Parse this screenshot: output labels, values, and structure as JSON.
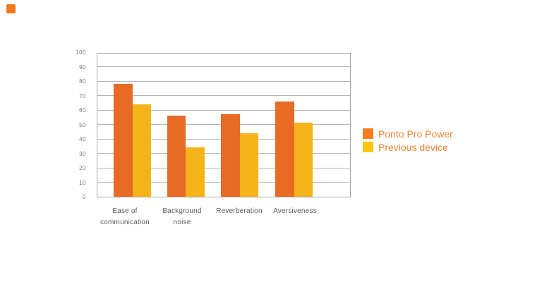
{
  "page": {
    "background": "#ffffff",
    "corner_mark_color": "#f4791f"
  },
  "chart_data": {
    "type": "bar",
    "title": "",
    "xlabel": "",
    "ylabel": "",
    "categories": [
      "Ease of communication",
      "Background noise",
      "Reverberation",
      "Aversiveness"
    ],
    "category_lines": [
      [
        "Ease of",
        "communication"
      ],
      [
        "Background",
        "noise"
      ],
      [
        "Reverberation"
      ],
      [
        "Aversiveness"
      ]
    ],
    "series": [
      {
        "name": "Ponto Pro Power",
        "values": [
          78,
          56,
          57,
          66
        ],
        "bar_color": "#e76a25",
        "legend_swatch_color": "#f57e20"
      },
      {
        "name": "Previous device",
        "values": [
          64,
          34,
          44,
          51
        ],
        "bar_color": "#f6b41b",
        "legend_swatch_color": "#fdc50f"
      }
    ],
    "ylim": [
      0,
      100
    ],
    "ytick_step": 10,
    "ytick_labels": [
      "0",
      "10",
      "20",
      "30",
      "40",
      "50",
      "60",
      "70",
      "80",
      "90",
      "100"
    ],
    "grid": "horizontal",
    "legend_position": "right",
    "colors": {
      "grid_line": "#b3b5b8",
      "axis_border": "#a4a6a9",
      "ytick_text": "#77787b",
      "category_text": "#58595b",
      "legend_text": "#ee8636"
    }
  }
}
